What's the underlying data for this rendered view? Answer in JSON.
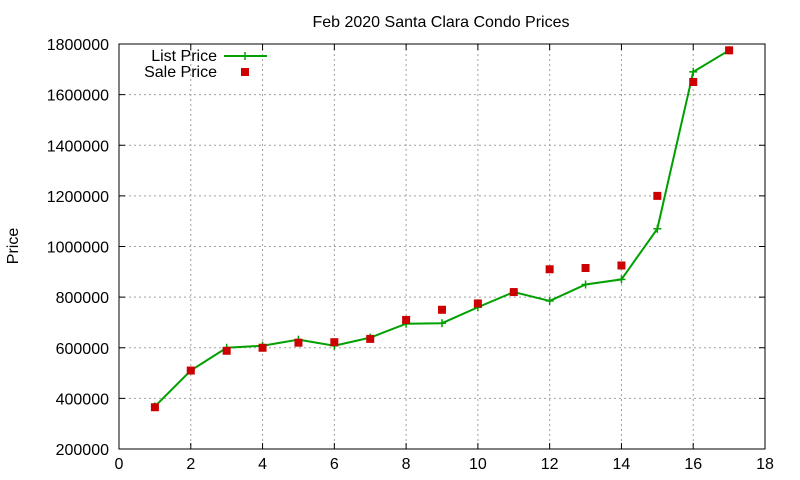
{
  "chart_data": {
    "type": "line",
    "title": "Feb 2020 Santa Clara Condo Prices",
    "xlabel": "",
    "ylabel": "Price",
    "xlim": [
      0,
      18
    ],
    "ylim": [
      200000,
      1800000
    ],
    "xticks": [
      0,
      2,
      4,
      6,
      8,
      10,
      12,
      14,
      16,
      18
    ],
    "yticks": [
      200000,
      400000,
      600000,
      800000,
      1000000,
      1200000,
      1400000,
      1600000,
      1800000
    ],
    "grid": true,
    "legend_position": "top-left",
    "series": [
      {
        "name": "List Price",
        "style": "line+plus",
        "color": "#00a000",
        "x": [
          1,
          2,
          3,
          4,
          5,
          6,
          7,
          8,
          9,
          10,
          11,
          12,
          13,
          14,
          15,
          16,
          17
        ],
        "y": [
          368000,
          510000,
          600000,
          608000,
          632000,
          608000,
          640000,
          695000,
          697000,
          760000,
          820000,
          785000,
          850000,
          870000,
          1070000,
          1690000,
          1775000
        ]
      },
      {
        "name": "Sale Price",
        "style": "square",
        "color": "#cc0000",
        "x": [
          1,
          2,
          3,
          4,
          5,
          6,
          7,
          8,
          9,
          10,
          11,
          12,
          13,
          14,
          15,
          16,
          17
        ],
        "y": [
          365000,
          510000,
          588000,
          600000,
          620000,
          622000,
          635000,
          710000,
          750000,
          775000,
          820000,
          910000,
          915000,
          925000,
          1200000,
          1650000,
          1775000
        ]
      }
    ]
  }
}
